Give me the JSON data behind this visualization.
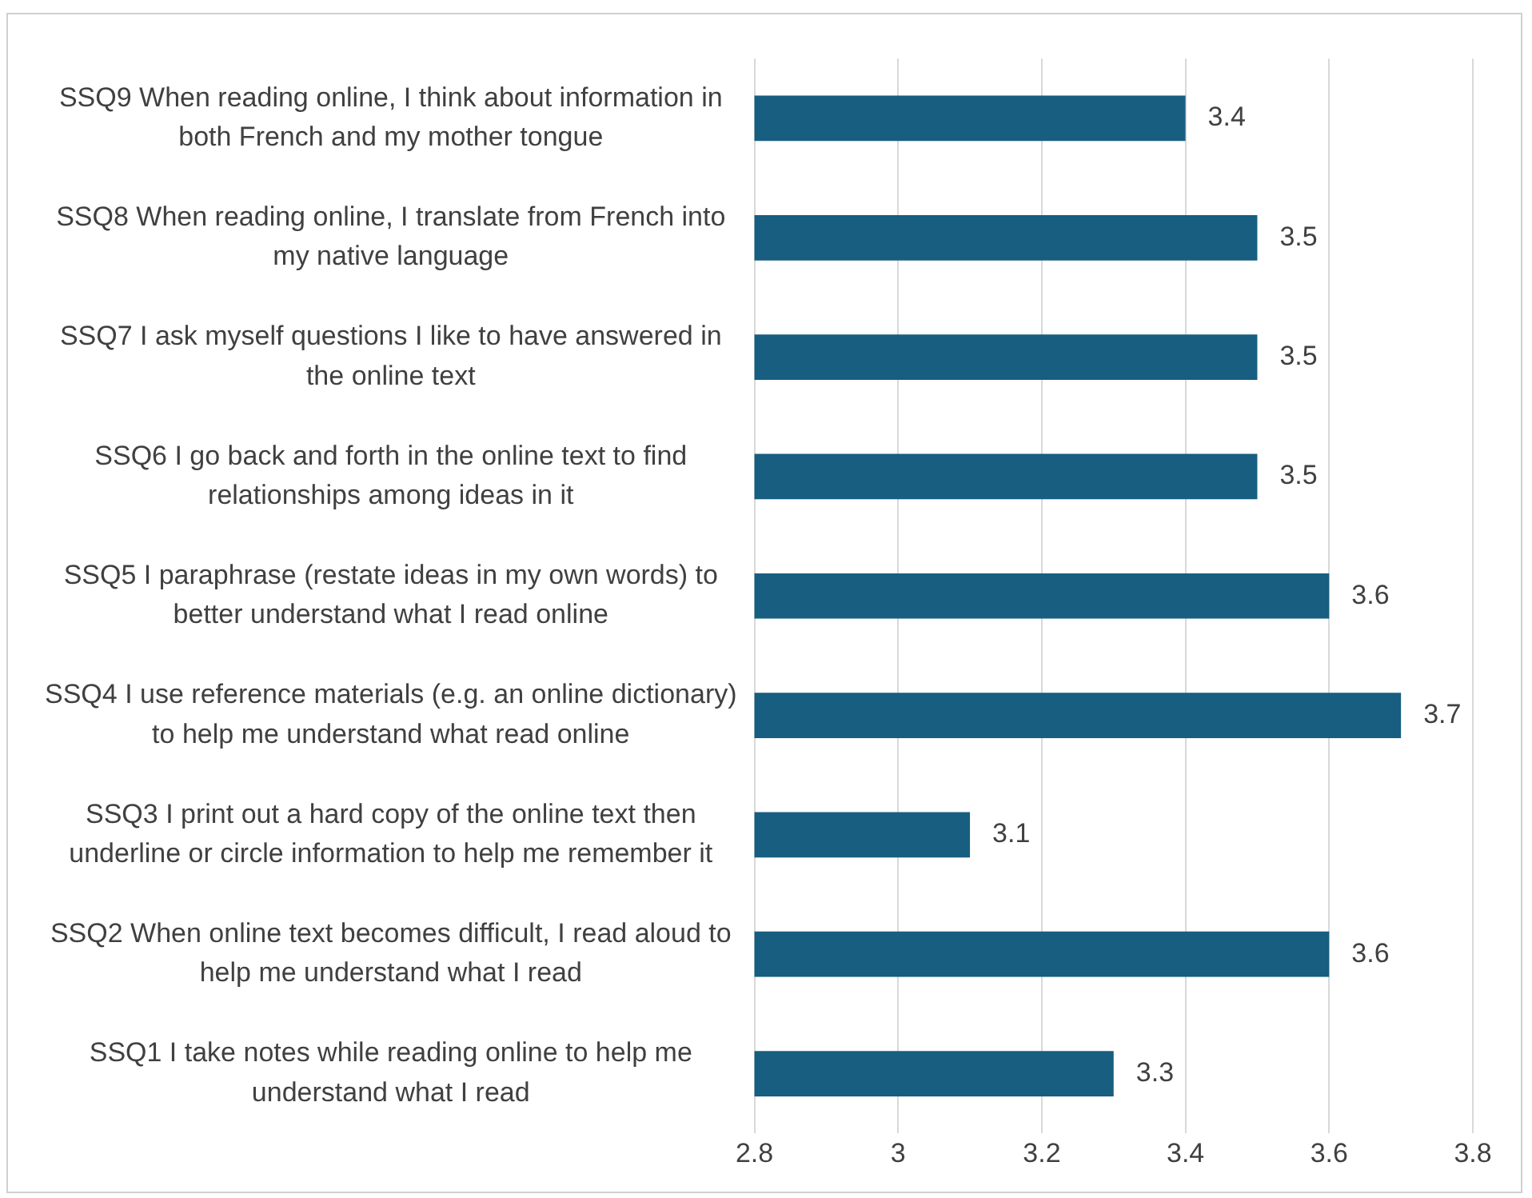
{
  "chart_data": {
    "type": "bar",
    "orientation": "horizontal",
    "categories": [
      "SSQ9 When reading online, I think about information in both French and my mother tongue",
      "SSQ8 When reading online, I translate from French into my native language",
      "SSQ7 I ask myself questions I like to have answered in the online text",
      "SSQ6 I go back and forth in the online text to find relationships among ideas in it",
      "SSQ5 I paraphrase (restate ideas in my own words) to better understand what I read online",
      "SSQ4 I use reference materials (e.g. an online dictionary) to help me understand what read online",
      "SSQ3 I print out a hard copy of the online text then underline or circle information to help me remember it",
      "SSQ2 When online text becomes difficult, I read aloud to help me understand what I read",
      "SSQ1 I take notes while reading online to help me understand what I read"
    ],
    "values": [
      3.4,
      3.5,
      3.5,
      3.5,
      3.6,
      3.7,
      3.1,
      3.6,
      3.3
    ],
    "color": "#175e80",
    "xlim": [
      2.8,
      3.8
    ],
    "xticks": [
      2.8,
      3,
      3.2,
      3.4,
      3.6,
      3.8
    ],
    "grid": "x",
    "data_labels": true
  }
}
